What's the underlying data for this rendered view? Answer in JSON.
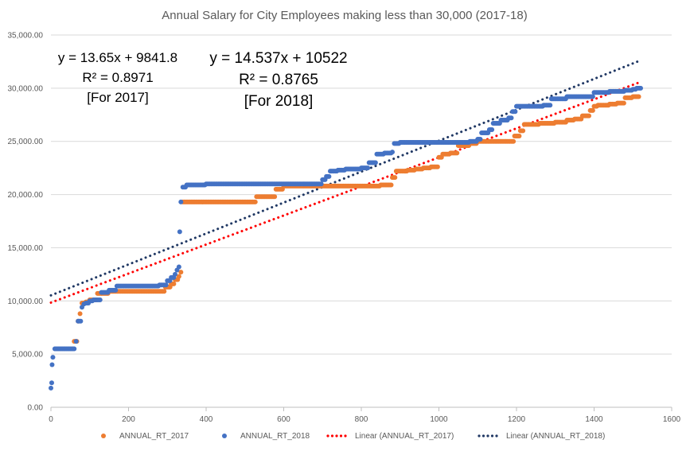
{
  "chart_data": {
    "type": "scatter",
    "title": "Annual Salary for City Employees making less than 30,000 (2017-18)",
    "xlabel": "",
    "ylabel": "",
    "xlim": [
      0,
      1600
    ],
    "ylim": [
      0,
      35000
    ],
    "x_ticks": [
      "0",
      "200",
      "400",
      "600",
      "800",
      "1000",
      "1200",
      "1400",
      "1600"
    ],
    "y_ticks": [
      "0.00",
      "5,000.00",
      "10,000.00",
      "15,000.00",
      "20,000.00",
      "25,000.00",
      "30,000.00",
      "35,000.00"
    ],
    "grid": "horizontal",
    "legend_position": "bottom",
    "series": [
      {
        "name": "ANNUAL_RT_2017",
        "color": "#ED7D31",
        "points": [
          [
            60,
            6200
          ],
          [
            70,
            8100
          ],
          [
            75,
            8800
          ],
          [
            80,
            9800
          ],
          [
            90,
            9900
          ],
          [
            100,
            10100
          ],
          [
            120,
            10700
          ],
          [
            150,
            10900
          ],
          [
            180,
            10900
          ],
          [
            220,
            10900
          ],
          [
            260,
            10900
          ],
          [
            295,
            11300
          ],
          [
            310,
            11600
          ],
          [
            320,
            12000
          ],
          [
            330,
            12300
          ],
          [
            335,
            12700
          ],
          [
            340,
            19300
          ],
          [
            380,
            19300
          ],
          [
            420,
            19300
          ],
          [
            460,
            19300
          ],
          [
            520,
            19300
          ],
          [
            530,
            19800
          ],
          [
            560,
            19800
          ],
          [
            580,
            20500
          ],
          [
            600,
            20800
          ],
          [
            640,
            20800
          ],
          [
            680,
            20800
          ],
          [
            720,
            20800
          ],
          [
            760,
            20800
          ],
          [
            800,
            20800
          ],
          [
            850,
            20900
          ],
          [
            880,
            21600
          ],
          [
            890,
            22200
          ],
          [
            920,
            22300
          ],
          [
            940,
            22400
          ],
          [
            960,
            22500
          ],
          [
            980,
            22600
          ],
          [
            1000,
            23500
          ],
          [
            1010,
            23800
          ],
          [
            1030,
            23900
          ],
          [
            1050,
            24600
          ],
          [
            1080,
            24800
          ],
          [
            1100,
            25000
          ],
          [
            1130,
            25000
          ],
          [
            1160,
            25000
          ],
          [
            1180,
            25000
          ],
          [
            1195,
            25500
          ],
          [
            1210,
            26000
          ],
          [
            1220,
            26600
          ],
          [
            1260,
            26700
          ],
          [
            1300,
            26800
          ],
          [
            1330,
            27000
          ],
          [
            1350,
            27100
          ],
          [
            1370,
            27400
          ],
          [
            1390,
            27900
          ],
          [
            1400,
            28300
          ],
          [
            1410,
            28400
          ],
          [
            1440,
            28500
          ],
          [
            1460,
            28600
          ],
          [
            1480,
            29100
          ],
          [
            1500,
            29200
          ],
          [
            1515,
            29200
          ]
        ]
      },
      {
        "name": "ANNUAL_RT_2018",
        "color": "#4472C4",
        "points": [
          [
            0,
            1800
          ],
          [
            2,
            2300
          ],
          [
            3,
            4000
          ],
          [
            5,
            4700
          ],
          [
            10,
            5500
          ],
          [
            30,
            5500
          ],
          [
            50,
            5500
          ],
          [
            60,
            5500
          ],
          [
            65,
            6200
          ],
          [
            70,
            8100
          ],
          [
            80,
            9400
          ],
          [
            85,
            9700
          ],
          [
            90,
            9800
          ],
          [
            100,
            10000
          ],
          [
            110,
            10100
          ],
          [
            130,
            10800
          ],
          [
            150,
            11000
          ],
          [
            170,
            11400
          ],
          [
            200,
            11400
          ],
          [
            240,
            11400
          ],
          [
            280,
            11500
          ],
          [
            300,
            11900
          ],
          [
            310,
            12200
          ],
          [
            320,
            12500
          ],
          [
            325,
            12900
          ],
          [
            330,
            13200
          ],
          [
            332,
            16500
          ],
          [
            335,
            19300
          ],
          [
            340,
            20700
          ],
          [
            350,
            20900
          ],
          [
            400,
            21000
          ],
          [
            450,
            21000
          ],
          [
            500,
            21000
          ],
          [
            550,
            21000
          ],
          [
            600,
            21000
          ],
          [
            650,
            21000
          ],
          [
            690,
            21000
          ],
          [
            700,
            21400
          ],
          [
            710,
            21700
          ],
          [
            720,
            22200
          ],
          [
            740,
            22300
          ],
          [
            760,
            22400
          ],
          [
            800,
            22500
          ],
          [
            820,
            23000
          ],
          [
            840,
            23800
          ],
          [
            860,
            23900
          ],
          [
            880,
            24000
          ],
          [
            885,
            24800
          ],
          [
            900,
            24900
          ],
          [
            950,
            24900
          ],
          [
            1000,
            24900
          ],
          [
            1050,
            24900
          ],
          [
            1080,
            25000
          ],
          [
            1100,
            25200
          ],
          [
            1110,
            25800
          ],
          [
            1130,
            26100
          ],
          [
            1140,
            26700
          ],
          [
            1160,
            27000
          ],
          [
            1180,
            27200
          ],
          [
            1190,
            27800
          ],
          [
            1200,
            28300
          ],
          [
            1240,
            28300
          ],
          [
            1270,
            28400
          ],
          [
            1290,
            29000
          ],
          [
            1330,
            29200
          ],
          [
            1380,
            29200
          ],
          [
            1400,
            29600
          ],
          [
            1440,
            29700
          ],
          [
            1480,
            29800
          ],
          [
            1500,
            29900
          ],
          [
            1510,
            30000
          ],
          [
            1520,
            30000
          ]
        ]
      }
    ],
    "trendlines": [
      {
        "name": "Linear (ANNUAL_RT_2017)",
        "color": "#FF0000",
        "slope": 13.65,
        "intercept": 9841.8,
        "x_range": [
          0,
          1515
        ]
      },
      {
        "name": "Linear (ANNUAL_RT_2018)",
        "color": "#203864",
        "slope": 14.537,
        "intercept": 10522,
        "x_range": [
          0,
          1520
        ]
      }
    ],
    "annotations": [
      {
        "id": "eq-2017",
        "lines": [
          "y = 13.65x + 9841.8",
          "R² = 0.8971",
          "[For 2017]"
        ]
      },
      {
        "id": "eq-2018",
        "lines": [
          "y = 14.537x + 10522",
          "R² = 0.8765",
          "[For 2018]"
        ]
      }
    ]
  }
}
